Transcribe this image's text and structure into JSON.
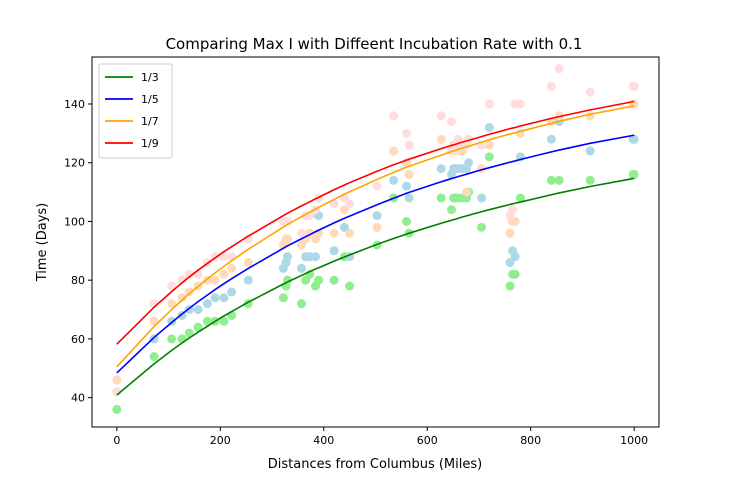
{
  "chart_data": {
    "type": "scatter",
    "title": "Comparing Max I with Diffeent Incubation Rate with 0.1",
    "xlabel": "Distances from Columbus (Miles)",
    "ylabel": "Time (Days)",
    "xlim": [
      -48,
      1048
    ],
    "ylim": [
      30,
      156
    ],
    "xticks": [
      0,
      200,
      400,
      600,
      800,
      1000
    ],
    "yticks": [
      40,
      60,
      80,
      100,
      120,
      140
    ],
    "grid": false,
    "legend_position": "top-left",
    "x": [
      0,
      72,
      106,
      126,
      140,
      157,
      175,
      190,
      207,
      222,
      254,
      322,
      327,
      330,
      357,
      365,
      373,
      384,
      390,
      420,
      440,
      450,
      503,
      535,
      560,
      565,
      627,
      647,
      651,
      655,
      660,
      668,
      676,
      680,
      705,
      720,
      760,
      765,
      770,
      780,
      840,
      855,
      915,
      998,
      1000
    ],
    "series": [
      {
        "name": "1/3",
        "color": "#008000",
        "marker_color": "#90ee90",
        "scatter": [
          36,
          54,
          60,
          60,
          62,
          64,
          66,
          66,
          66,
          68,
          72,
          74,
          78,
          80,
          72,
          80,
          82,
          78,
          80,
          80,
          88,
          78,
          92,
          108,
          100,
          96,
          108,
          104,
          108,
          108,
          108,
          108,
          108,
          110,
          98,
          122,
          78,
          82,
          82,
          108,
          114,
          114,
          114,
          116,
          116
        ],
        "fit": [
          40.9,
          51.5,
          56.1,
          58.6,
          60.3,
          62.3,
          64.3,
          66.0,
          67.8,
          69.3,
          72.5,
          78.7,
          79.1,
          79.4,
          81.6,
          82.3,
          82.9,
          83.8,
          84.2,
          86.5,
          87.9,
          88.6,
          92.2,
          94.2,
          95.7,
          96.0,
          99.4,
          100.4,
          100.6,
          100.8,
          101.1,
          101.5,
          101.9,
          102.1,
          103.3,
          104.0,
          105.8,
          106.0,
          106.2,
          106.6,
          109.1,
          109.7,
          111.9,
          114.6,
          114.7
        ]
      },
      {
        "name": "1/5",
        "color": "#0000ff",
        "marker_color": "#add8e6",
        "scatter": [
          42,
          60,
          66,
          68,
          70,
          70,
          72,
          74,
          74,
          76,
          80,
          84,
          86,
          88,
          84,
          88,
          88,
          88,
          102,
          90,
          98,
          88,
          102,
          114,
          112,
          108,
          118,
          116,
          118,
          118,
          118,
          118,
          118,
          120,
          108,
          132,
          86,
          90,
          88,
          122,
          128,
          134,
          124,
          128,
          128
        ],
        "fit": [
          48.4,
          60.5,
          65.6,
          68.5,
          70.4,
          72.7,
          74.9,
          76.8,
          78.8,
          80.5,
          84.0,
          90.9,
          91.4,
          91.7,
          94.1,
          94.8,
          95.5,
          96.5,
          97.0,
          99.5,
          101.1,
          101.8,
          105.7,
          107.9,
          109.6,
          109.9,
          113.5,
          114.6,
          114.8,
          115.0,
          115.3,
          115.7,
          116.1,
          116.3,
          117.6,
          118.3,
          120.2,
          120.4,
          120.6,
          121.1,
          123.7,
          124.3,
          126.6,
          129.3,
          129.4
        ]
      },
      {
        "name": "1/7",
        "color": "#ffa500",
        "marker_color": "#ffdab9",
        "scatter": [
          46,
          66,
          72,
          74,
          76,
          78,
          80,
          80,
          82,
          84,
          86,
          92,
          94,
          94,
          92,
          94,
          96,
          94,
          96,
          96,
          104,
          96,
          98,
          124,
          120,
          116,
          128,
          124,
          126,
          124,
          126,
          124,
          110,
          128,
          118,
          126,
          96,
          100,
          100,
          130,
          134,
          136,
          136,
          140,
          140
        ],
        "fit": [
          50.5,
          64.2,
          70.0,
          73.2,
          75.4,
          77.9,
          80.4,
          82.5,
          84.7,
          86.6,
          90.5,
          98.1,
          98.6,
          99.0,
          101.6,
          102.4,
          103.1,
          104.2,
          104.8,
          107.5,
          109.3,
          110.1,
          114.3,
          116.7,
          118.5,
          118.8,
          122.6,
          123.8,
          124.0,
          124.3,
          124.6,
          125.0,
          125.4,
          125.6,
          127.0,
          127.8,
          129.8,
          130.0,
          130.2,
          130.7,
          133.4,
          134.1,
          136.5,
          139.3,
          139.4
        ]
      },
      {
        "name": "1/9",
        "color": "#ff0000",
        "marker_color": "#ffdddd",
        "scatter": [
          42,
          72,
          78,
          80,
          82,
          82,
          86,
          88,
          88,
          88,
          94,
          100,
          100,
          100,
          96,
          102,
          102,
          104,
          108,
          106,
          108,
          106,
          112,
          136,
          130,
          126,
          136,
          134,
          124,
          126,
          128,
          126,
          126,
          128,
          126,
          140,
          102,
          104,
          140,
          140,
          146,
          152,
          144,
          146,
          146
        ],
        "fit": [
          58.2,
          70.8,
          76.1,
          79.1,
          81.1,
          83.4,
          85.7,
          87.6,
          89.7,
          91.4,
          95.0,
          102.0,
          102.5,
          102.8,
          105.3,
          106.0,
          106.7,
          107.7,
          108.2,
          110.8,
          112.4,
          113.2,
          117.1,
          119.3,
          120.9,
          121.2,
          124.8,
          125.9,
          126.1,
          126.3,
          126.6,
          127.0,
          127.4,
          127.6,
          128.9,
          129.7,
          131.6,
          131.8,
          132.0,
          132.5,
          135.1,
          135.7,
          138.0,
          140.8,
          140.9
        ]
      }
    ]
  }
}
